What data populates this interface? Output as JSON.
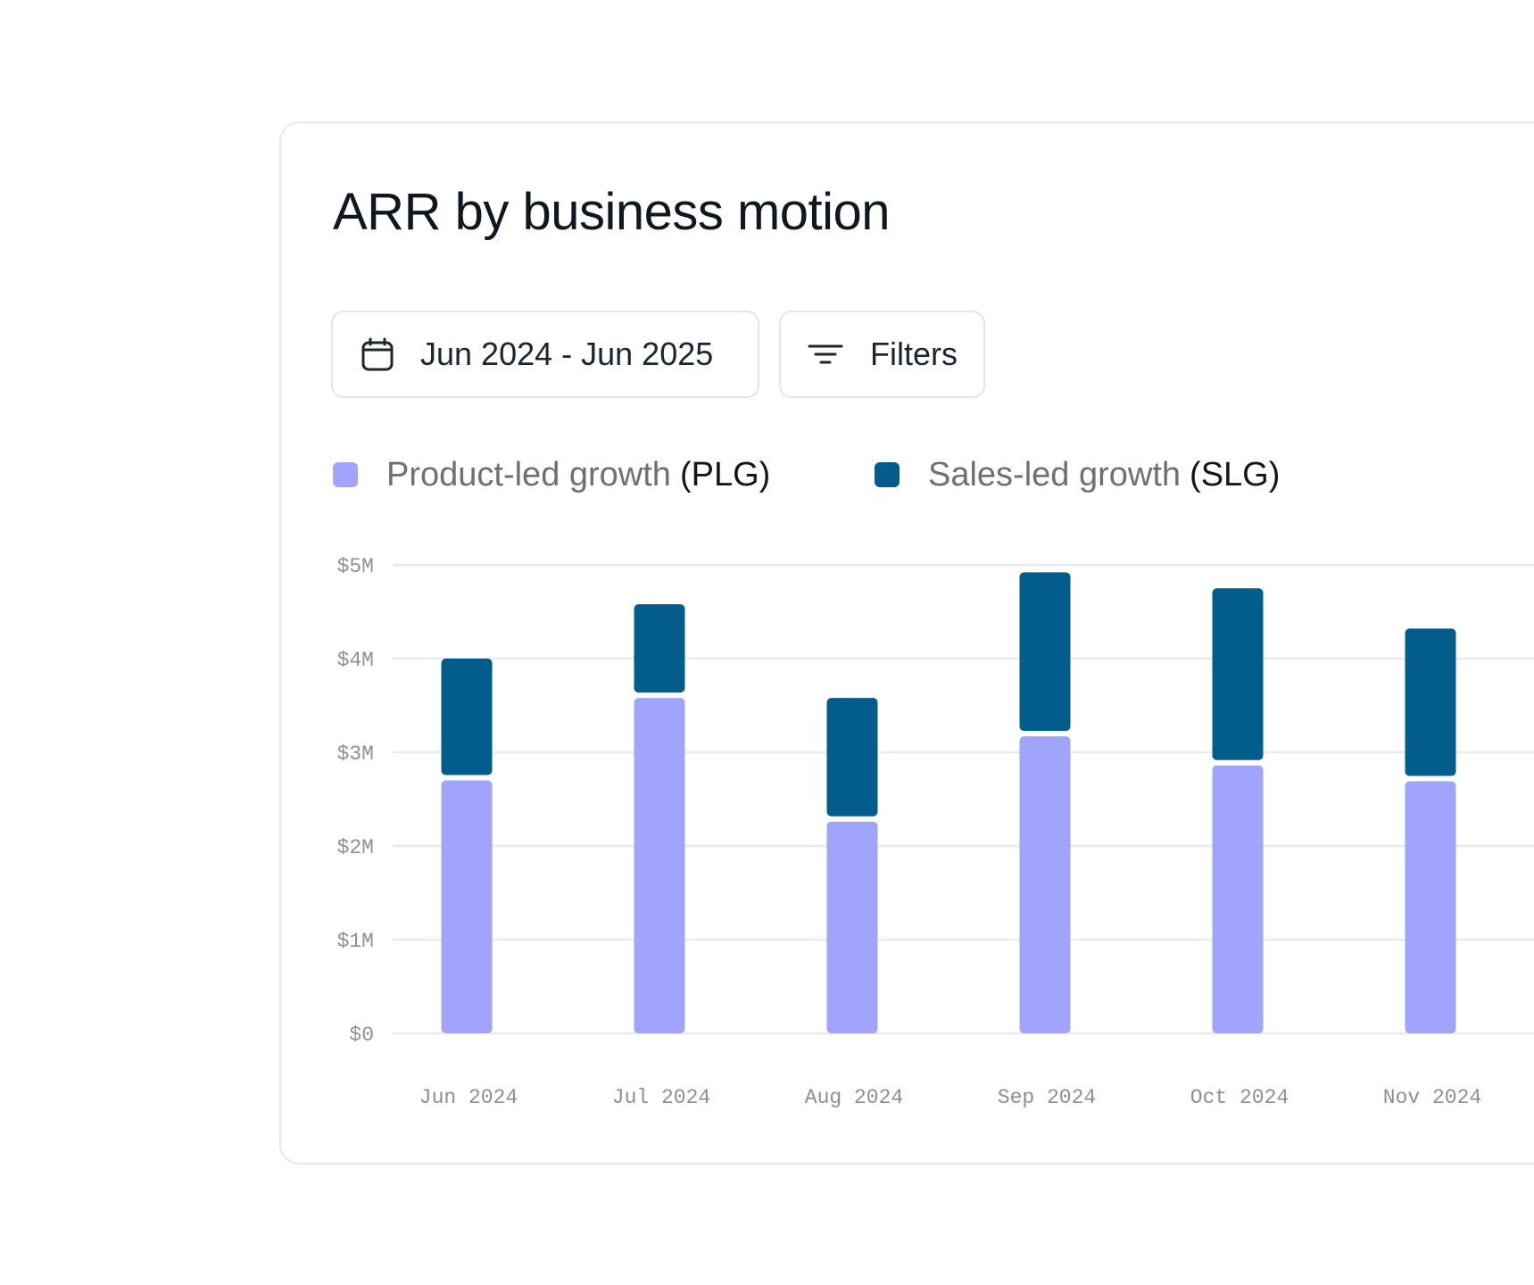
{
  "header": {
    "title": "ARR by business motion"
  },
  "controls": {
    "date_range_label": "Jun 2024 - Jun 2025",
    "date_icon": "calendar-icon",
    "filters_label": "Filters",
    "filters_icon": "filter-lines-icon"
  },
  "legend": [
    {
      "name": "Product-led growth",
      "abbr": "(PLG)",
      "color": "#a0a4fd"
    },
    {
      "name": "Sales-led growth",
      "abbr": "(SLG)",
      "color": "#025d8c"
    }
  ],
  "chart_data": {
    "type": "bar",
    "stacked": true,
    "title": "ARR by business motion",
    "xlabel": "",
    "ylabel": "",
    "categories": [
      "Jun 2024",
      "Jul 2024",
      "Aug 2024",
      "Sep 2024",
      "Oct 2024",
      "Nov 2024"
    ],
    "series": [
      {
        "name": "Product-led growth (PLG)",
        "color": "#a0a4fd",
        "values": [
          2.7,
          3.58,
          2.26,
          3.17,
          2.86,
          2.69
        ]
      },
      {
        "name": "Sales-led growth (SLG)",
        "color": "#025d8c",
        "values": [
          1.3,
          1.0,
          1.32,
          1.75,
          1.89,
          1.63
        ]
      }
    ],
    "ylim": [
      0,
      5
    ],
    "yticks": [
      0,
      1,
      2,
      3,
      4,
      5
    ],
    "ytick_labels": [
      "$0",
      "$1M",
      "$2M",
      "$3M",
      "$4M",
      "$5M"
    ],
    "grid": true,
    "legend_position": "top-left"
  }
}
